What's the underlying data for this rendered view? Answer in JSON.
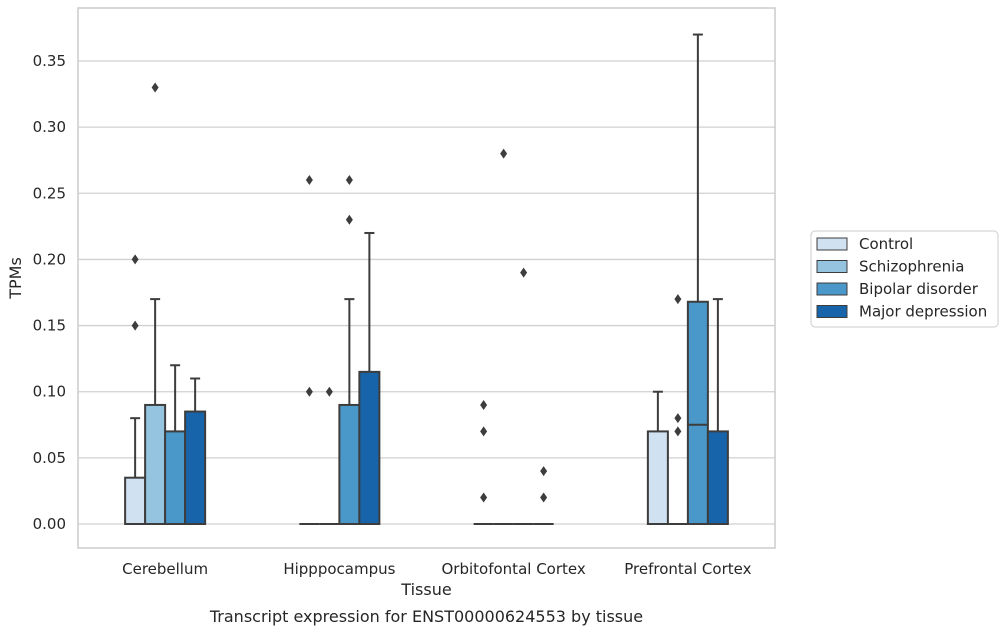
{
  "chart_data": {
    "type": "boxplot",
    "xlabel": "Tissue",
    "ylabel": "TPMs",
    "caption": "Transcript expression for ENST00000624553 by tissue",
    "ylim": [
      -0.018,
      0.388
    ],
    "yticks": [
      0.0,
      0.05,
      0.1,
      0.15,
      0.2,
      0.25,
      0.3,
      0.35
    ],
    "ytick_labels": [
      "0.00",
      "0.05",
      "0.10",
      "0.15",
      "0.20",
      "0.25",
      "0.30",
      "0.35"
    ],
    "grid": "horizontal",
    "legend_position": "right",
    "categories": [
      "Cerebellum",
      "Hipppocampus",
      "Orbitofontal Cortex",
      "Prefrontal Cortex"
    ],
    "series": [
      {
        "name": "Control",
        "color": "#d0e1f2",
        "boxes": [
          {
            "q1": 0.0,
            "median": 0.0,
            "q3": 0.035,
            "whisker_low": 0.0,
            "whisker_high": 0.08,
            "outliers": [
              0.15,
              0.2
            ]
          },
          {
            "q1": 0.0,
            "median": 0.0,
            "q3": 0.0,
            "whisker_low": 0.0,
            "whisker_high": 0.0,
            "outliers": [
              0.1,
              0.26
            ]
          },
          {
            "q1": 0.0,
            "median": 0.0,
            "q3": 0.0,
            "whisker_low": 0.0,
            "whisker_high": 0.0,
            "outliers": [
              0.02,
              0.07,
              0.09
            ]
          },
          {
            "q1": 0.0,
            "median": 0.0,
            "q3": 0.07,
            "whisker_low": 0.0,
            "whisker_high": 0.1,
            "outliers": []
          }
        ]
      },
      {
        "name": "Schizophrenia",
        "color": "#94c4df",
        "boxes": [
          {
            "q1": 0.0,
            "median": 0.0,
            "q3": 0.09,
            "whisker_low": 0.0,
            "whisker_high": 0.17,
            "outliers": [
              0.33
            ]
          },
          {
            "q1": 0.0,
            "median": 0.0,
            "q3": 0.0,
            "whisker_low": 0.0,
            "whisker_high": 0.0,
            "outliers": [
              0.1
            ]
          },
          {
            "q1": 0.0,
            "median": 0.0,
            "q3": 0.0,
            "whisker_low": 0.0,
            "whisker_high": 0.0,
            "outliers": [
              0.28
            ]
          },
          {
            "q1": 0.0,
            "median": 0.0,
            "q3": 0.0,
            "whisker_low": 0.0,
            "whisker_high": 0.0,
            "outliers": [
              0.07,
              0.08,
              0.17
            ]
          }
        ]
      },
      {
        "name": "Bipolar disorder",
        "color": "#4a98c9",
        "boxes": [
          {
            "q1": 0.0,
            "median": 0.0,
            "q3": 0.07,
            "whisker_low": 0.0,
            "whisker_high": 0.12,
            "outliers": []
          },
          {
            "q1": 0.0,
            "median": 0.0,
            "q3": 0.09,
            "whisker_low": 0.0,
            "whisker_high": 0.17,
            "outliers": [
              0.23,
              0.26
            ]
          },
          {
            "q1": 0.0,
            "median": 0.0,
            "q3": 0.0,
            "whisker_low": 0.0,
            "whisker_high": 0.0,
            "outliers": [
              0.19
            ]
          },
          {
            "q1": 0.0,
            "median": 0.075,
            "q3": 0.168,
            "whisker_low": 0.0,
            "whisker_high": 0.37,
            "outliers": []
          }
        ]
      },
      {
        "name": "Major depression",
        "color": "#1764ab",
        "boxes": [
          {
            "q1": 0.0,
            "median": 0.0,
            "q3": 0.085,
            "whisker_low": 0.0,
            "whisker_high": 0.11,
            "outliers": []
          },
          {
            "q1": 0.0,
            "median": 0.0,
            "q3": 0.115,
            "whisker_low": 0.0,
            "whisker_high": 0.22,
            "outliers": []
          },
          {
            "q1": 0.0,
            "median": 0.0,
            "q3": 0.0,
            "whisker_low": 0.0,
            "whisker_high": 0.0,
            "outliers": [
              0.02,
              0.04
            ]
          },
          {
            "q1": 0.0,
            "median": 0.0,
            "q3": 0.07,
            "whisker_low": 0.0,
            "whisker_high": 0.17,
            "outliers": []
          }
        ]
      }
    ],
    "colors": {
      "grid": "#d0d0d0",
      "frame": "#cccccc",
      "edge": "#3d3d3d",
      "outlier": "#3d3d3d"
    }
  }
}
